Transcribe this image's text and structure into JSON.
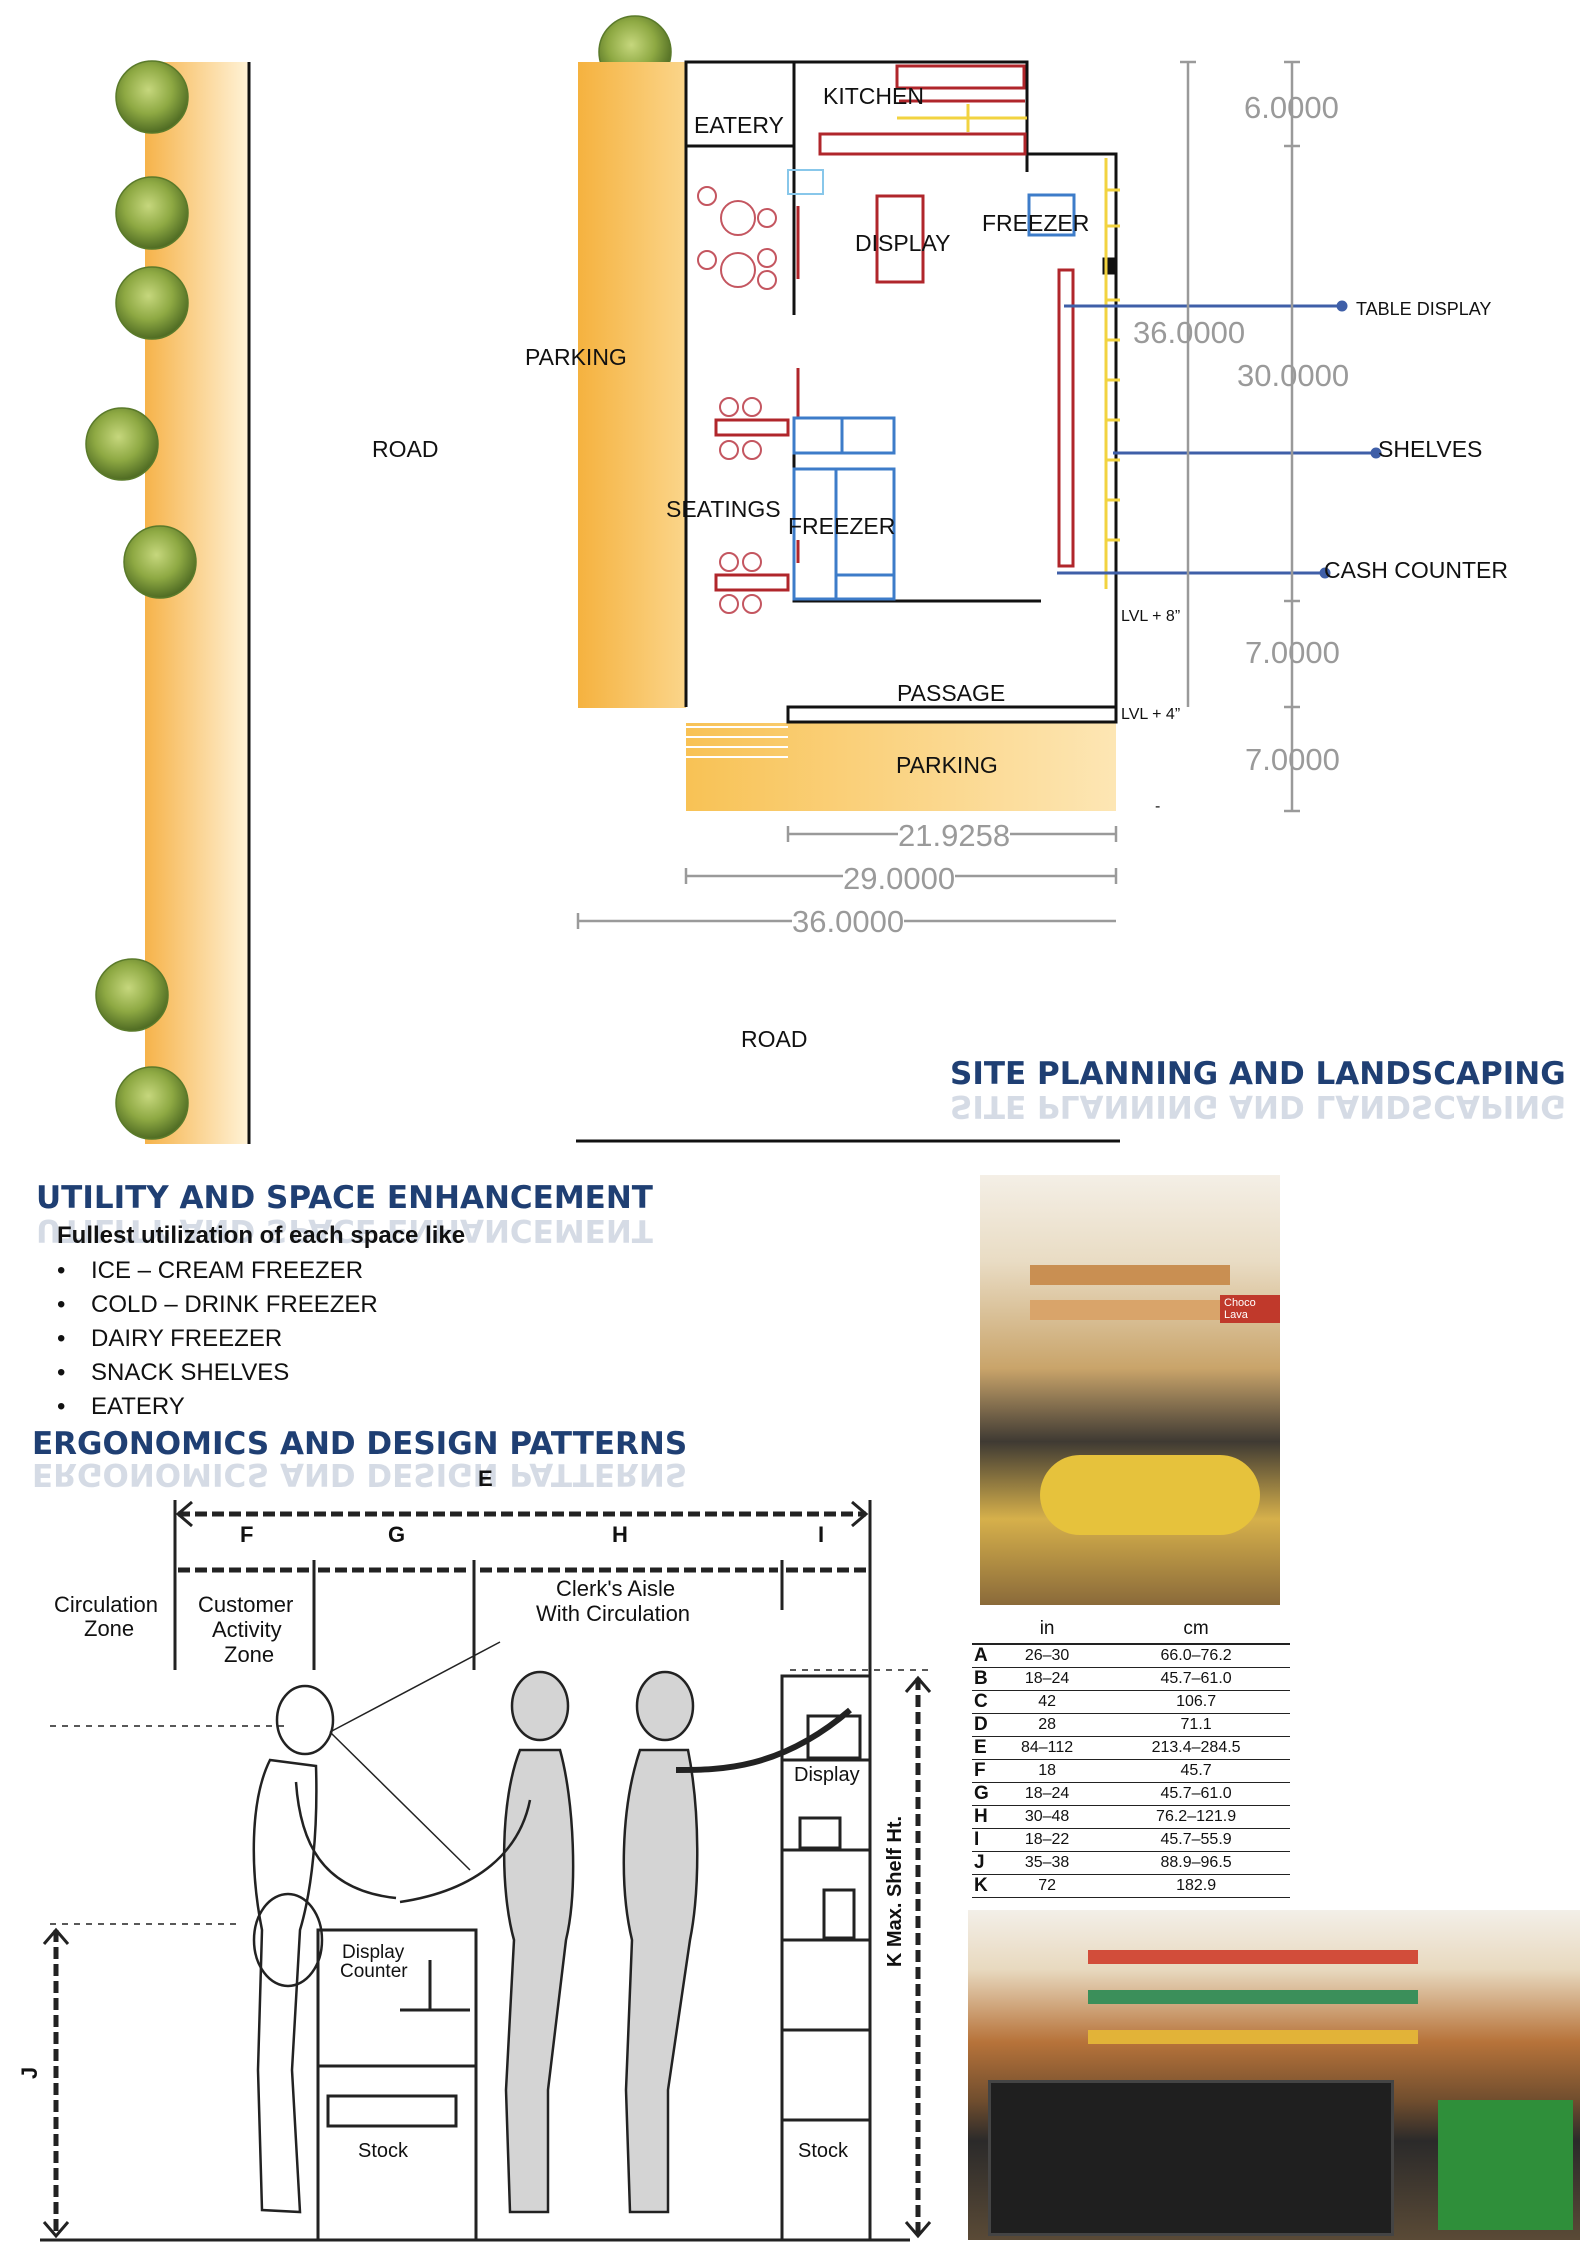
{
  "site_plan": {
    "labels": {
      "road_left": "ROAD",
      "road_bottom": "ROAD",
      "parking_side": "PARKING",
      "parking_front": "PARKING",
      "eatery": "EATERY",
      "kitchen": "KITCHEN",
      "display": "DISPLAY",
      "freezer_top": "FREEZER",
      "freezer_mid": "FREEZER",
      "seatings": "SEATINGS",
      "passage": "PASSAGE",
      "table_display": "TABLE DISPLAY",
      "shelves": "SHELVES",
      "cash_counter": "CASH COUNTER",
      "level_8": "LVL + 8”",
      "level_4": "LVL + 4”",
      "dash": "-"
    },
    "dimensions": {
      "d_6": "6.0000",
      "d_36_inner": "36.0000",
      "d_30": "30.0000",
      "d_7a": "7.0000",
      "d_7b": "7.0000",
      "d_21": "21.9258",
      "d_29": "29.0000",
      "d_36_bottom": "36.0000"
    },
    "heading": "SITE PLANNING AND LANDSCAPING",
    "colors": {
      "orange": "#f7b640",
      "wall": "#111111",
      "red_furniture": "#b0262b",
      "blue_freezer": "#3d7cc9",
      "yellow_shelf": "#f2d340",
      "leader": "#3f5fa8"
    }
  },
  "utility": {
    "heading": "UTILITY AND SPACE ENHANCEMENT",
    "subtitle": "Fullest utilization of each space like",
    "items": [
      "ICE – CREAM FREEZER",
      "COLD – DRINK FREEZER",
      "DAIRY FREEZER",
      "SNACK SHELVES",
      "EATERY"
    ]
  },
  "ergonomics": {
    "heading": "ERGONOMICS AND DESIGN PATTERNS",
    "drawing_labels": {
      "e": "E",
      "f": "F",
      "g": "G",
      "h": "H",
      "i": "I",
      "j": "J",
      "circulation_1": "Circulation",
      "circulation_2": "Zone",
      "customer_1": "Customer",
      "customer_2": "Activity",
      "customer_3": "Zone",
      "clerk_1": "Clerk's Aisle",
      "clerk_2": "With Circulation",
      "display": "Display",
      "display_counter_1": "Display",
      "display_counter_2": "Counter",
      "stock_left": "Stock",
      "stock_right": "Stock",
      "shelf": "K Max. Shelf Ht."
    },
    "table": {
      "headers": [
        "in",
        "cm"
      ],
      "rows": [
        {
          "key": "A",
          "in": "26–30",
          "cm": "66.0–76.2"
        },
        {
          "key": "B",
          "in": "18–24",
          "cm": "45.7–61.0"
        },
        {
          "key": "C",
          "in": "42",
          "cm": "106.7"
        },
        {
          "key": "D",
          "in": "28",
          "cm": "71.1"
        },
        {
          "key": "E",
          "in": "84–112",
          "cm": "213.4–284.5"
        },
        {
          "key": "F",
          "in": "18",
          "cm": "45.7"
        },
        {
          "key": "G",
          "in": "18–24",
          "cm": "45.7–61.0"
        },
        {
          "key": "H",
          "in": "30–48",
          "cm": "76.2–121.9"
        },
        {
          "key": "I",
          "in": "18–22",
          "cm": "45.7–55.9"
        },
        {
          "key": "J",
          "in": "35–38",
          "cm": "88.9–96.5"
        },
        {
          "key": "K",
          "in": "72",
          "cm": "182.9"
        }
      ]
    },
    "photo_badge": "Choco Lava"
  }
}
